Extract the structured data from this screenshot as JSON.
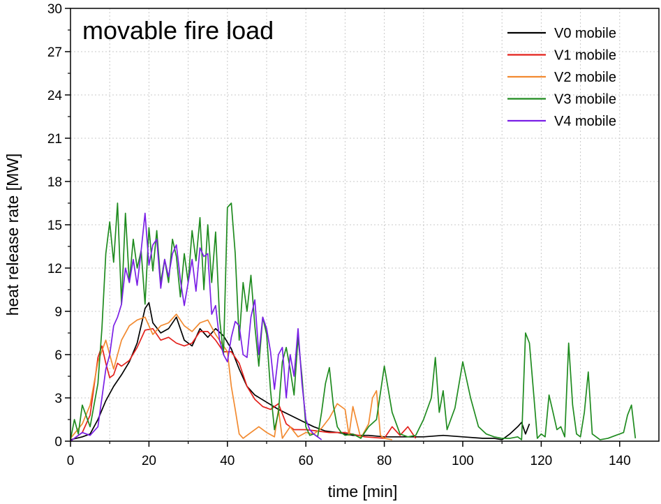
{
  "chart_data": {
    "type": "line",
    "title": "movable fire load",
    "xlabel": "time [min]",
    "ylabel": "heat release rate [MW]",
    "xlim": [
      0,
      150
    ],
    "ylim": [
      0,
      30
    ],
    "xticks": [
      0,
      20,
      40,
      60,
      80,
      100,
      120,
      140
    ],
    "yticks": [
      0,
      3,
      6,
      9,
      12,
      15,
      18,
      21,
      24,
      27,
      30
    ],
    "grid": true,
    "legend_position": "top-right",
    "series": [
      {
        "name": "V0 mobile",
        "color": "#000000",
        "x": [
          0,
          3,
          5,
          7,
          9,
          11,
          13,
          15,
          17,
          19,
          20,
          21,
          23,
          25,
          27,
          29,
          31,
          33,
          35,
          37,
          39,
          41,
          43,
          45,
          47,
          50,
          53,
          56,
          59,
          62,
          65,
          68,
          72,
          76,
          80,
          85,
          90,
          95,
          100,
          105,
          108,
          110,
          112,
          114,
          115,
          116,
          117
        ],
        "y": [
          0.1,
          0.3,
          0.5,
          1.5,
          2.8,
          3.8,
          4.6,
          5.5,
          6.8,
          9.2,
          9.6,
          8.2,
          7.5,
          7.8,
          8.6,
          7.0,
          6.6,
          7.8,
          7.2,
          7.8,
          7.3,
          6.4,
          5.0,
          3.8,
          3.2,
          2.7,
          2.2,
          1.8,
          1.4,
          1.0,
          0.7,
          0.6,
          0.4,
          0.4,
          0.3,
          0.3,
          0.3,
          0.4,
          0.3,
          0.2,
          0.2,
          0.1,
          0.5,
          1.0,
          1.3,
          0.5,
          1.2
        ]
      },
      {
        "name": "V1 mobile",
        "color": "#e3201b",
        "x": [
          0,
          3,
          5,
          7,
          8,
          9,
          10,
          11,
          12,
          13,
          15,
          17,
          19,
          21,
          23,
          25,
          27,
          29,
          31,
          33,
          35,
          37,
          39,
          41,
          43,
          45,
          47,
          49,
          51,
          53,
          55,
          57,
          60,
          63,
          66,
          70,
          75,
          80,
          82,
          84,
          86,
          88
        ],
        "y": [
          0,
          0.6,
          1.8,
          5.8,
          6.6,
          5.4,
          4.4,
          4.6,
          5.4,
          5.2,
          5.6,
          6.5,
          7.7,
          7.8,
          7.0,
          7.2,
          6.8,
          6.6,
          6.8,
          7.6,
          7.6,
          7.0,
          6.2,
          6.2,
          5.4,
          3.8,
          2.9,
          2.4,
          2.2,
          2.6,
          1.2,
          0.8,
          0.8,
          0.7,
          0.6,
          0.6,
          0.3,
          0.2,
          1.0,
          0.4,
          1.0,
          0.2
        ]
      },
      {
        "name": "V2 mobile",
        "color": "#f28a30",
        "x": [
          0,
          3,
          5,
          7,
          9,
          11,
          13,
          15,
          17,
          19,
          21,
          23,
          25,
          27,
          29,
          31,
          33,
          35,
          37,
          39,
          40,
          41,
          42,
          43,
          44,
          46,
          48,
          50,
          52,
          53,
          54,
          56,
          58,
          60,
          62,
          64,
          66,
          68,
          70,
          71,
          72,
          74,
          76,
          77,
          78,
          79,
          80,
          82
        ],
        "y": [
          0.2,
          1.2,
          2.5,
          5.5,
          7.0,
          5.0,
          7.0,
          8.0,
          8.4,
          8.6,
          7.4,
          8.0,
          8.2,
          8.8,
          8.0,
          7.6,
          8.2,
          8.4,
          7.4,
          6.6,
          6.2,
          3.8,
          2.2,
          0.5,
          0.2,
          0.6,
          1.0,
          0.6,
          0.3,
          2.2,
          0.2,
          1.0,
          0.3,
          0.6,
          0.5,
          0.9,
          1.6,
          2.6,
          2.2,
          0.4,
          2.4,
          0.2,
          1.2,
          3.0,
          3.5,
          0.4,
          0.2,
          0.1
        ]
      },
      {
        "name": "V3 mobile",
        "color": "#1f8b1f",
        "x": [
          0,
          1,
          2,
          3,
          5,
          7,
          8,
          9,
          10,
          11,
          12,
          13,
          14,
          15,
          16,
          17,
          18,
          19,
          20,
          21,
          22,
          23,
          24,
          25,
          26,
          27,
          28,
          29,
          30,
          31,
          32,
          33,
          34,
          35,
          36,
          37,
          38,
          39,
          40,
          41,
          42,
          43,
          44,
          45,
          46,
          47,
          48,
          49,
          50,
          51,
          52,
          53,
          54,
          55,
          56,
          57,
          58,
          59,
          60,
          61,
          62,
          63,
          64,
          65,
          66,
          67,
          68,
          69,
          70,
          72,
          74,
          76,
          78,
          80,
          82,
          84,
          86,
          88,
          90,
          92,
          93,
          94,
          95,
          96,
          98,
          100,
          102,
          104,
          106,
          108,
          110,
          112,
          114,
          115,
          116,
          117,
          118,
          119,
          120,
          121,
          122,
          123,
          124,
          125,
          126,
          127,
          128,
          129,
          130,
          131,
          132,
          133,
          134,
          135,
          137,
          139,
          141,
          142,
          143,
          144
        ],
        "y": [
          0.1,
          1.5,
          0.5,
          2.5,
          1.0,
          4.0,
          7.8,
          13.0,
          15.2,
          12.4,
          16.5,
          9.5,
          15.8,
          11.0,
          14.0,
          12.0,
          13.2,
          9.5,
          14.8,
          11.8,
          14.6,
          11.0,
          12.6,
          11.0,
          14.0,
          12.8,
          10.0,
          13.0,
          11.0,
          14.6,
          12.5,
          15.5,
          10.5,
          15.0,
          11.0,
          14.5,
          8.5,
          6.0,
          16.2,
          16.5,
          13.0,
          7.0,
          11.0,
          9.0,
          11.5,
          8.0,
          5.2,
          8.6,
          7.4,
          3.5,
          0.8,
          2.0,
          5.5,
          6.5,
          5.0,
          3.2,
          7.2,
          4.5,
          1.0,
          0.4,
          0.5,
          0.3,
          2.0,
          4.0,
          5.1,
          2.5,
          1.0,
          0.6,
          0.4,
          0.5,
          0.2,
          1.0,
          1.5,
          5.2,
          2.0,
          0.5,
          0.3,
          0.4,
          1.5,
          3.0,
          5.8,
          2.0,
          3.5,
          0.8,
          2.3,
          5.5,
          3.0,
          1.0,
          0.5,
          0.3,
          0.2,
          0.2,
          0.3,
          0.1,
          7.5,
          6.8,
          3.5,
          0.2,
          0.5,
          0.3,
          3.2,
          2.0,
          0.8,
          1.0,
          0.3,
          6.8,
          2.5,
          0.5,
          0.3,
          2.0,
          4.8,
          0.5,
          0.3,
          0.1,
          0.2,
          0.4,
          0.6,
          1.8,
          2.5,
          0.2
        ]
      },
      {
        "name": "V4 mobile",
        "color": "#7a1fe6",
        "x": [
          0,
          3,
          5,
          7,
          8,
          9,
          10,
          11,
          12,
          13,
          14,
          15,
          16,
          17,
          18,
          19,
          20,
          21,
          22,
          23,
          24,
          25,
          26,
          27,
          28,
          29,
          30,
          31,
          32,
          33,
          34,
          35,
          36,
          37,
          38,
          39,
          40,
          41,
          42,
          43,
          44,
          45,
          46,
          47,
          48,
          49,
          50,
          51,
          52,
          53,
          54,
          55,
          56,
          57,
          58,
          59,
          60,
          61,
          62,
          63,
          64
        ],
        "y": [
          0,
          0.6,
          0.4,
          1.0,
          3.0,
          5.0,
          6.0,
          8.0,
          8.6,
          9.5,
          12.0,
          11.0,
          12.6,
          10.8,
          13.2,
          15.8,
          12.2,
          13.6,
          14.0,
          10.6,
          12.6,
          11.4,
          13.0,
          13.6,
          11.2,
          9.4,
          11.0,
          12.6,
          10.4,
          13.4,
          12.8,
          13.0,
          8.8,
          9.4,
          7.0,
          6.0,
          5.5,
          7.2,
          8.3,
          8.0,
          6.0,
          5.8,
          8.6,
          9.8,
          6.0,
          8.6,
          7.8,
          6.2,
          3.6,
          6.0,
          6.5,
          3.0,
          6.0,
          4.5,
          7.8,
          4.0,
          1.5,
          0.8,
          0.5,
          0.3,
          0.1
        ]
      }
    ]
  }
}
